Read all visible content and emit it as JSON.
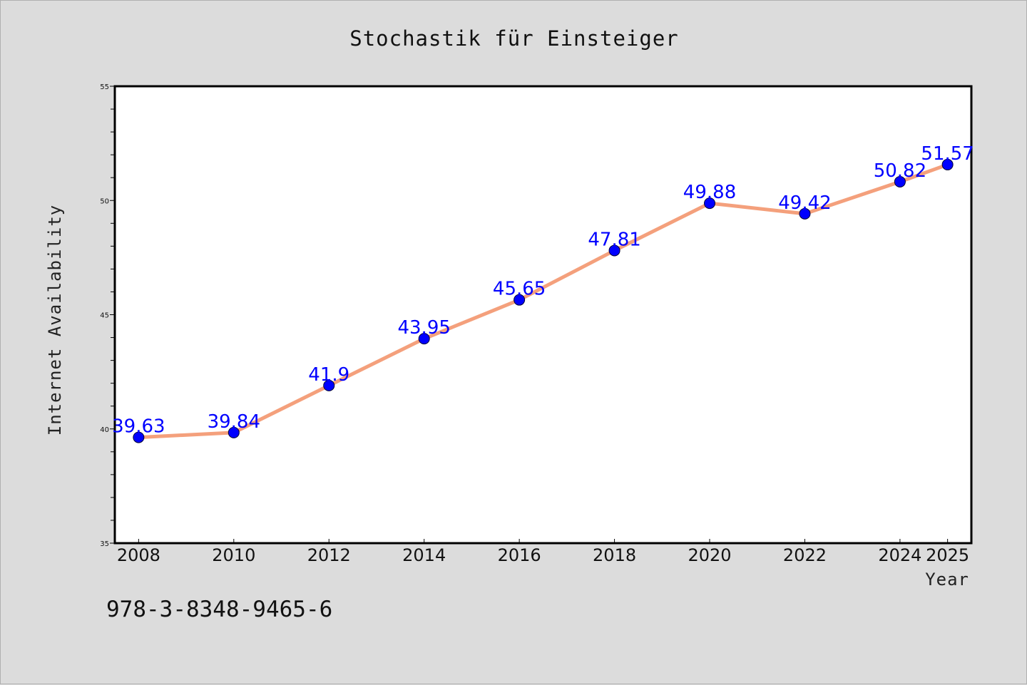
{
  "chart_data": {
    "type": "line",
    "title": "Stochastik für Einsteiger",
    "xlabel": "Year",
    "ylabel": "Internet Availability",
    "x": [
      2008,
      2010,
      2012,
      2014,
      2016,
      2018,
      2020,
      2022,
      2024,
      2025
    ],
    "xtick_labels": [
      "2008",
      "2010",
      "2012",
      "2014",
      "2016",
      "2018",
      "2020",
      "2022",
      "2024",
      "2025"
    ],
    "series": [
      {
        "values": [
          39.63,
          39.84,
          41.9,
          43.95,
          45.65,
          47.81,
          49.88,
          49.42,
          50.82,
          51.57
        ]
      }
    ],
    "data_labels": [
      "39.63",
      "39.84",
      "41.9",
      "43.95",
      "45.65",
      "47.81",
      "49.88",
      "49.42",
      "50.82",
      "51.57"
    ],
    "ylim": [
      35,
      55
    ],
    "yticks": [
      35,
      40,
      45,
      50,
      55
    ],
    "ytick_labels": [
      "35",
      "40",
      "45",
      "50",
      "55"
    ],
    "grid": false,
    "line_color": "#f4a07c",
    "marker_color": "#0000ff",
    "label_color": "#0000ff",
    "background": "#dcdcdc",
    "plot_background": "#ffffff"
  },
  "footer": {
    "isbn": "978-3-8348-9465-6"
  }
}
